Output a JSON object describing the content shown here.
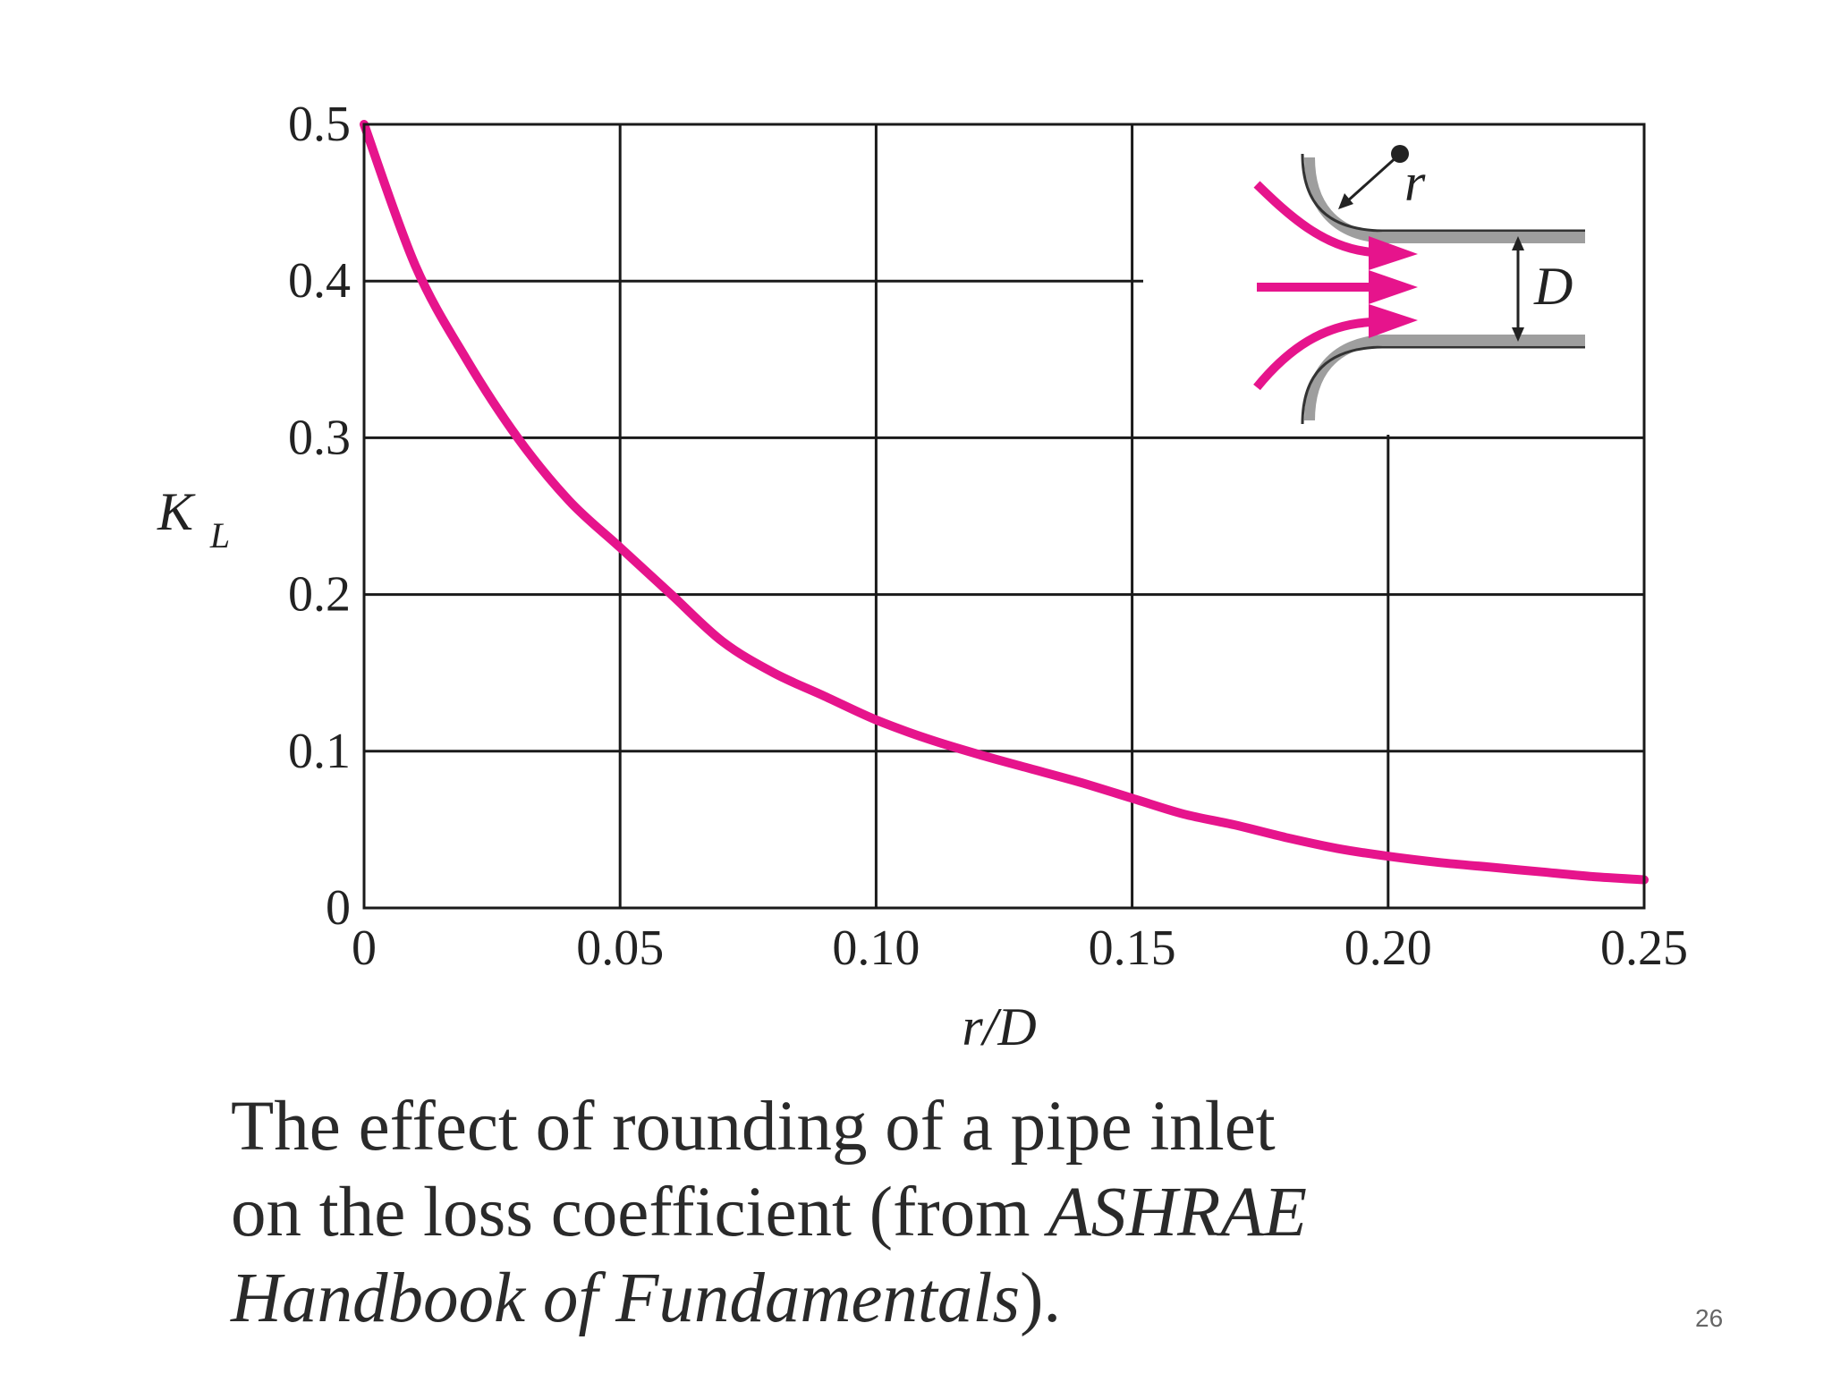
{
  "chart_data": {
    "type": "line",
    "xlabel": "r/D",
    "ylabel": "K",
    "ylabel_subscript": "L",
    "xlim": [
      0,
      0.25
    ],
    "ylim": [
      0,
      0.5
    ],
    "grid": true,
    "x_ticks": [
      "0",
      "0.05",
      "0.10",
      "0.15",
      "0.20",
      "0.25"
    ],
    "x_tick_values": [
      0,
      0.05,
      0.1,
      0.15,
      0.2,
      0.25
    ],
    "y_ticks": [
      "0",
      "0.1",
      "0.2",
      "0.3",
      "0.4",
      "0.5"
    ],
    "y_tick_values": [
      0,
      0.1,
      0.2,
      0.3,
      0.4,
      0.5
    ],
    "series": [
      {
        "color": "#e6148c",
        "x": [
          0,
          0.01,
          0.02,
          0.03,
          0.04,
          0.05,
          0.06,
          0.07,
          0.08,
          0.09,
          0.1,
          0.11,
          0.12,
          0.13,
          0.14,
          0.15,
          0.16,
          0.17,
          0.18,
          0.19,
          0.2,
          0.21,
          0.22,
          0.23,
          0.24,
          0.25
        ],
        "y": [
          0.5,
          0.41,
          0.35,
          0.3,
          0.26,
          0.23,
          0.2,
          0.17,
          0.15,
          0.135,
          0.12,
          0.108,
          0.098,
          0.089,
          0.08,
          0.07,
          0.06,
          0.053,
          0.045,
          0.038,
          0.033,
          0.029,
          0.026,
          0.023,
          0.02,
          0.018
        ]
      }
    ],
    "inset_labels": {
      "radius": "r",
      "diameter": "D"
    }
  },
  "caption": {
    "line1": "The effect of rounding of a pipe inlet",
    "line2_pre": "on the loss coefficient (from ",
    "line2_italic": "ASHRAE",
    "line3_italic": "Handbook of Fundamentals",
    "line3_post": ")."
  },
  "page_number": "26",
  "colors": {
    "curve": "#e6148c",
    "grid": "#1a1a1a",
    "text": "#222222"
  }
}
